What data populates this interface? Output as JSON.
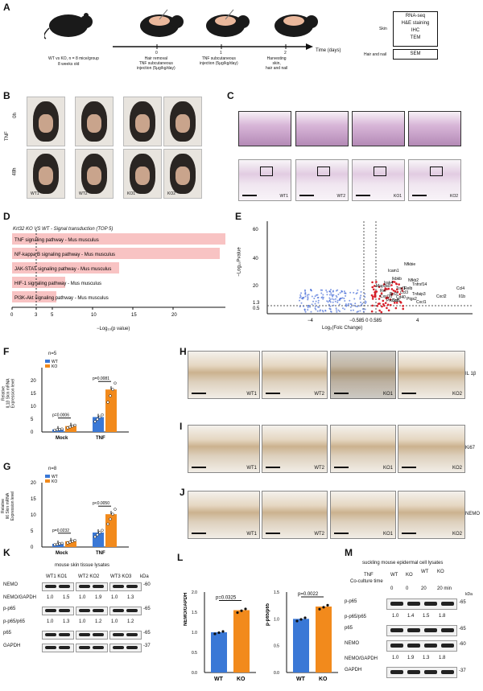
{
  "panels": {
    "A": "A",
    "B": "B",
    "C": "C",
    "D": "D",
    "E": "E",
    "F": "F",
    "G": "G",
    "H": "H",
    "I": "I",
    "J": "J",
    "K": "K",
    "L": "L",
    "M": "M"
  },
  "a": {
    "group_line1": "WT vs KO,  n = 8 mice/group",
    "group_line2": "8 weeks old",
    "timeline_axis": "Time (days)",
    "ticks": [
      "0",
      "1",
      "2"
    ],
    "step0": "Hair removal\nTNF subcutaneous\ninjection (5μg/kg/day)",
    "step1": "TNF subcutaneous\ninjection (5μg/kg/day)",
    "step2": "Harvesting\nskin,\nhair and nail",
    "skin_label": "Skin",
    "skin_methods": [
      "RNA-seq",
      "H&E staining",
      "IHC",
      "TEM"
    ],
    "hair_label": "Hair and nail",
    "hair_methods": [
      "SEM"
    ]
  },
  "b": {
    "treatment": "TNF",
    "rows": [
      "0h",
      "48h"
    ],
    "mice": [
      "WT1",
      "WT2",
      "KO1",
      "KO2"
    ]
  },
  "c": {
    "labels": [
      "WT1",
      "WT2",
      "KO1",
      "KO2"
    ]
  },
  "d": {
    "title": "Krt32 KO VS WT - Signal transduction (TOP 5)",
    "xlabel": "−Log₁₀(p value)",
    "chart_data": {
      "type": "bar",
      "categories": [
        "TNF signaling pathway - Mus musculus",
        "NF-kappa B signaling pathway - Mus musculus",
        "JAK-STAT signaling pathway - Mus musculus",
        "HIF-1 signaling pathway - Mus musculus",
        "PI3K-Akt signaling pathway - Mus musculus"
      ],
      "values": [
        26.5,
        25.8,
        13.3,
        6.6,
        5.5
      ],
      "xticks": [
        "0",
        "3",
        "5",
        "10",
        "15",
        "20"
      ],
      "xlim": [
        0,
        26.5
      ],
      "threshold": 3
    }
  },
  "e": {
    "ylabel": "−Log₁₀Pvalue",
    "xlabel": "Log₂(Folc Change)",
    "yticks": [
      "60",
      "40",
      "20",
      "1.3",
      "0.5"
    ],
    "xticks": [
      "−4",
      "−0.585 0 0.585",
      "4"
    ],
    "genes": [
      "Nfkbie",
      "Icam1",
      "Tnfrsf14",
      "Ikbkb",
      "Irak4",
      "Rel",
      "Bcl3",
      "Ccl3",
      "Ccl5",
      "Ptgs2",
      "Cd40",
      "Cxcl1",
      "Cxcl2",
      "Ccl4",
      "Il1b",
      "Map3k8",
      "Pik3cd",
      "Cxcl10",
      "Relb",
      "Tnfaip3",
      "Traf1",
      "Nfkb2"
    ]
  },
  "f": {
    "n": "n=5",
    "legend": [
      "WT",
      "KO"
    ],
    "ylabel": "Relative\nIL1β Skin mRNA\nExpression level",
    "groups": [
      "Mock",
      "TNF"
    ],
    "pvals": [
      "p=0.0006",
      "p=0.0081"
    ],
    "yticks": [
      "0",
      "5",
      "10",
      "15",
      "20"
    ],
    "chart_data": {
      "type": "bar",
      "categories": [
        "Mock",
        "TNF"
      ],
      "series": [
        {
          "name": "WT",
          "values": [
            1.0,
            5.8
          ]
        },
        {
          "name": "KO",
          "values": [
            2.3,
            16.5
          ]
        }
      ],
      "ylim": [
        0,
        25
      ]
    }
  },
  "g": {
    "n": "n=8",
    "legend": [
      "WT",
      "KO"
    ],
    "ylabel": "Relative\nIl6 Skin mRNA\nExpression level",
    "groups": [
      "Mock",
      "TNF"
    ],
    "pvals": [
      "p=0.0232",
      "p<0.0050"
    ],
    "yticks": [
      "0",
      "5",
      "10",
      "15",
      "20"
    ],
    "chart_data": {
      "type": "bar",
      "categories": [
        "Mock",
        "TNF"
      ],
      "series": [
        {
          "name": "WT",
          "values": [
            1.0,
            4.5
          ]
        },
        {
          "name": "KO",
          "values": [
            1.8,
            10.2
          ]
        }
      ],
      "ylim": [
        0,
        20
      ]
    }
  },
  "hij": {
    "labels": [
      "WT1",
      "WT2",
      "KO1",
      "KO2"
    ],
    "stains": [
      "IL 1β",
      "Ki67",
      "NEMO"
    ]
  },
  "k": {
    "title": "mouse skin tissue lysates",
    "lanes": [
      "WT1 KO1",
      "WT2 KO2",
      "WT3 KO3"
    ],
    "kda": "kDa",
    "rows": [
      {
        "name": "NEMO",
        "mw": "60"
      },
      {
        "name": "NEMO/GAPDH",
        "ratios": [
          "1.0",
          "1.5",
          "1.0",
          "1.9",
          "1.0",
          "1.3"
        ]
      },
      {
        "name": "p-p65",
        "mw": "65"
      },
      {
        "name": "p-p65/p65",
        "ratios": [
          "1.0",
          "1.3",
          "1.0",
          "1.2",
          "1.0",
          "1.2"
        ]
      },
      {
        "name": "p65",
        "mw": "65"
      },
      {
        "name": "GAPDH",
        "mw": "37"
      }
    ]
  },
  "l": {
    "left": {
      "ylabel": "NEMO/GAPDH",
      "p": "p=0.0325",
      "yticks": [
        "0.0",
        "0.5",
        "1.0",
        "1.5",
        "2.0"
      ],
      "chart_data": {
        "type": "bar",
        "categories": [
          "WT",
          "KO"
        ],
        "values": [
          1.0,
          1.55
        ],
        "ylim": [
          0,
          2.0
        ]
      }
    },
    "right": {
      "ylabel": "p-p65/p65",
      "p": "p=0.0022",
      "yticks": [
        "0.0",
        "0.5",
        "1.0",
        "1.5"
      ],
      "chart_data": {
        "type": "bar",
        "categories": [
          "WT",
          "KO"
        ],
        "values": [
          1.0,
          1.23
        ],
        "ylim": [
          0,
          1.5
        ]
      }
    }
  },
  "m": {
    "title": "suckling mouse epidermal cell lysates",
    "header_groups": [
      "WT",
      "KO",
      "WT",
      "KO"
    ],
    "tnf": "TNF",
    "coculture": "Co-culture time",
    "times": [
      "0",
      "0",
      "20",
      "20 min"
    ],
    "kda": "kDa",
    "rows": [
      {
        "name": "p-p65",
        "mw": "65"
      },
      {
        "name": "p-p65/p65",
        "ratios": [
          "1.0",
          "1.4",
          "1.5",
          "1.8"
        ]
      },
      {
        "name": "p65",
        "mw": "65"
      },
      {
        "name": "NEMO",
        "mw": "60"
      },
      {
        "name": "NEMO/GAPDH",
        "ratios": [
          "1.0",
          "1.9",
          "1.3",
          "1.8"
        ]
      },
      {
        "name": "GAPDH",
        "mw": "37"
      }
    ]
  },
  "colors": {
    "wt": "#3a78d6",
    "ko": "#f28a1c",
    "pathway": "#f8c3c3"
  }
}
